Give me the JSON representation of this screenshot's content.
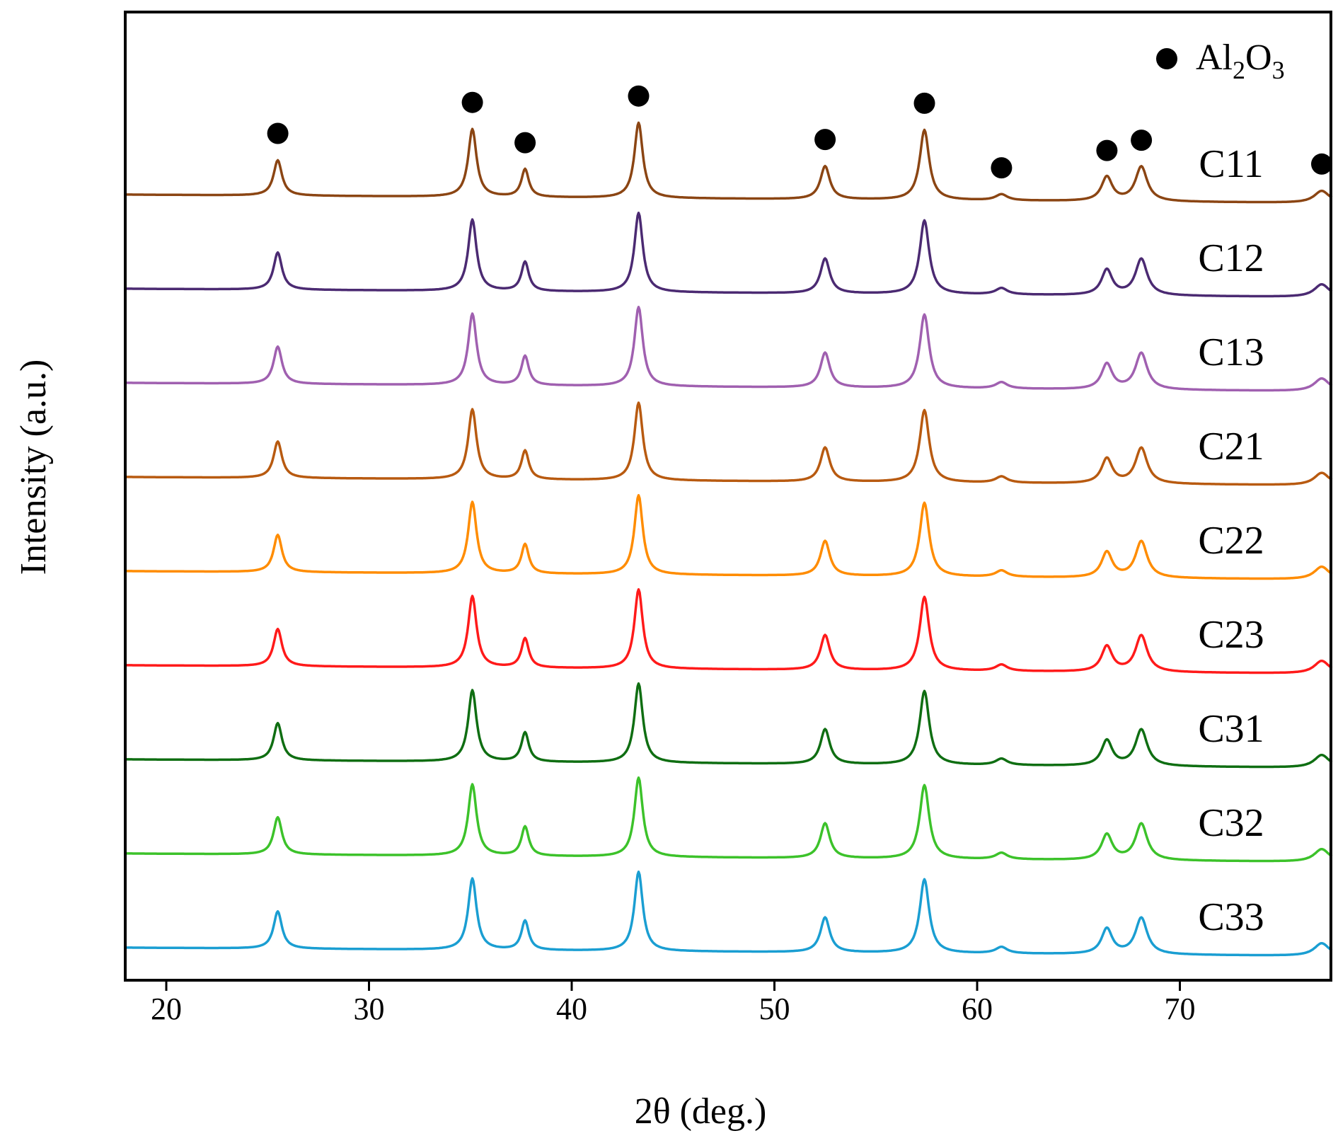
{
  "chart_data": {
    "type": "line",
    "title": "",
    "xlabel": "2θ (deg.)",
    "ylabel": "Intensity (a.u.)",
    "xlim": [
      18,
      77.5
    ],
    "xticks": [
      20,
      30,
      40,
      50,
      60,
      70
    ],
    "xtick_labels": [
      "20",
      "30",
      "40",
      "50",
      "60",
      "70"
    ],
    "grid": false,
    "legend": {
      "marker": "filled-circle",
      "label_parts": {
        "a": "Al",
        "b": "2",
        "c": "O",
        "d": "3"
      },
      "placement": "top-right"
    },
    "peaks": [
      {
        "x": 25.5,
        "height": 0.47
      },
      {
        "x": 35.1,
        "height": 0.9
      },
      {
        "x": 37.7,
        "height": 0.37
      },
      {
        "x": 43.3,
        "height": 1.0
      },
      {
        "x": 52.5,
        "height": 0.44
      },
      {
        "x": 57.4,
        "height": 0.93
      },
      {
        "x": 61.2,
        "height": 0.08
      },
      {
        "x": 66.4,
        "height": 0.32
      },
      {
        "x": 68.1,
        "height": 0.46
      },
      {
        "x": 77.0,
        "height": 0.16
      }
    ],
    "series": [
      {
        "name": "C11",
        "color": "#8B4513",
        "scale": 0.95
      },
      {
        "name": "C12",
        "color": "#4B2A72",
        "scale": 1.0
      },
      {
        "name": "C13",
        "color": "#A060B0",
        "scale": 1.0
      },
      {
        "name": "C21",
        "color": "#B85A10",
        "scale": 0.98
      },
      {
        "name": "C22",
        "color": "#FF8C00",
        "scale": 1.0
      },
      {
        "name": "C23",
        "color": "#FF1A1A",
        "scale": 1.0
      },
      {
        "name": "C31",
        "color": "#0F6E12",
        "scale": 1.0
      },
      {
        "name": "C32",
        "color": "#3CC22A",
        "scale": 1.0
      },
      {
        "name": "C33",
        "color": "#1A9ED2",
        "scale": 1.0
      }
    ]
  }
}
